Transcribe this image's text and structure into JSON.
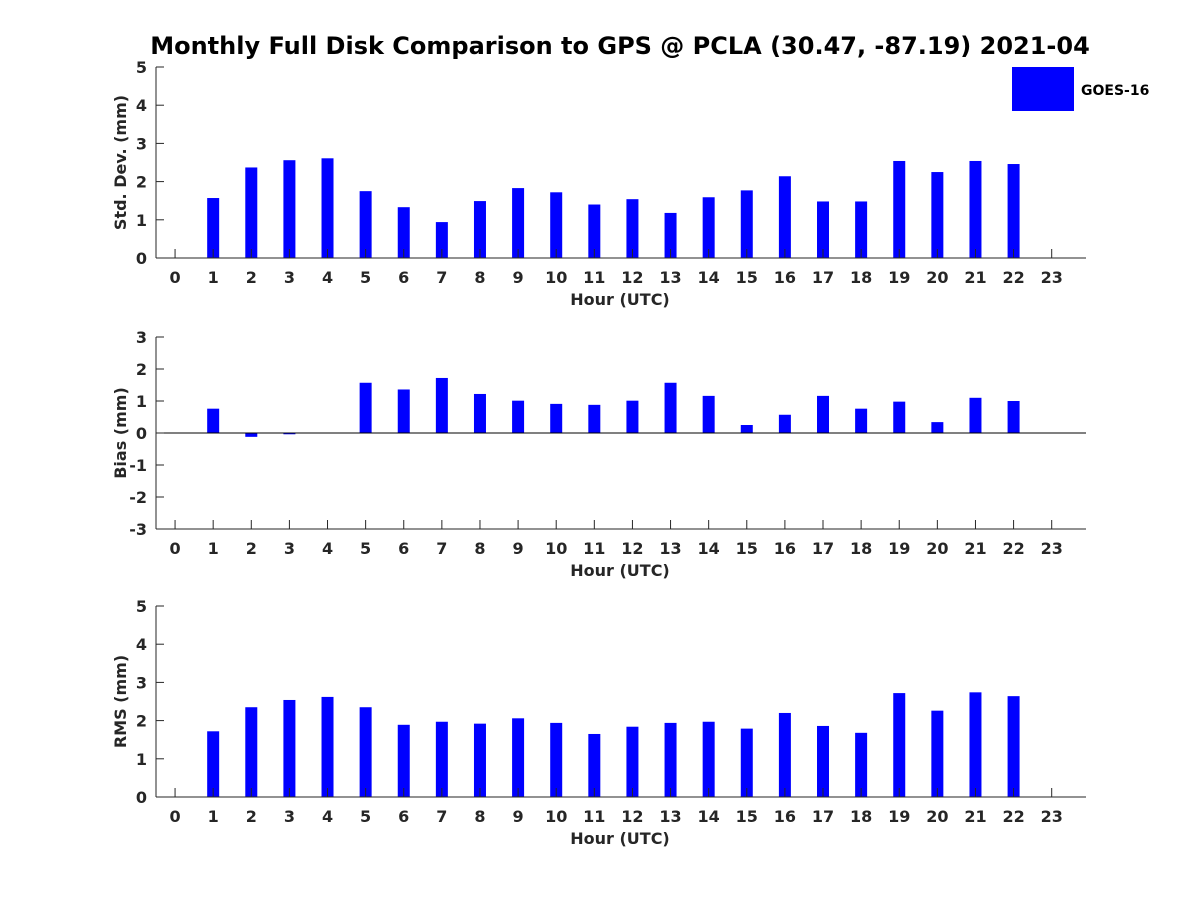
{
  "title": "Monthly Full Disk Comparison to GPS @ PCLA (30.47, -87.19) 2021-04",
  "legend": {
    "label": "GOES-16",
    "color": "#0000ff",
    "placement": "top-right"
  },
  "colors": {
    "bar": "#0000ff",
    "axis": "#262626"
  },
  "chart_data": [
    {
      "type": "bar",
      "series": [
        {
          "name": "GOES-16",
          "x": [
            1,
            2,
            3,
            4,
            5,
            6,
            7,
            8,
            9,
            10,
            11,
            12,
            13,
            14,
            15,
            16,
            17,
            18,
            19,
            20,
            21,
            22
          ],
          "values": [
            1.57,
            2.37,
            2.56,
            2.61,
            1.75,
            1.33,
            0.94,
            1.49,
            1.83,
            1.72,
            1.4,
            1.54,
            1.18,
            1.59,
            1.77,
            2.14,
            1.48,
            1.48,
            2.54,
            2.25,
            2.54,
            2.46
          ]
        }
      ],
      "xticks": [
        "0",
        "1",
        "2",
        "3",
        "4",
        "5",
        "6",
        "7",
        "8",
        "9",
        "10",
        "11",
        "12",
        "13",
        "14",
        "15",
        "16",
        "17",
        "18",
        "19",
        "20",
        "21",
        "22",
        "23"
      ],
      "yticks": [
        "0",
        "1",
        "2",
        "3",
        "4",
        "5"
      ],
      "xlabel": "Hour (UTC)",
      "ylabel": "Std. Dev. (mm)",
      "xlim": [
        -0.5,
        23.9
      ],
      "ylim": [
        0,
        5
      ],
      "grid": false
    },
    {
      "type": "bar",
      "series": [
        {
          "name": "GOES-16",
          "x": [
            1,
            2,
            3,
            4,
            5,
            6,
            7,
            8,
            9,
            10,
            11,
            12,
            13,
            14,
            15,
            16,
            17,
            18,
            19,
            20,
            21,
            22
          ],
          "values": [
            0.76,
            -0.12,
            -0.04,
            0.0,
            1.57,
            1.36,
            1.72,
            1.22,
            1.01,
            0.91,
            0.88,
            1.01,
            1.57,
            1.16,
            0.25,
            0.57,
            1.16,
            0.76,
            0.98,
            0.34,
            1.1,
            1.0
          ]
        }
      ],
      "xticks": [
        "0",
        "1",
        "2",
        "3",
        "4",
        "5",
        "6",
        "7",
        "8",
        "9",
        "10",
        "11",
        "12",
        "13",
        "14",
        "15",
        "16",
        "17",
        "18",
        "19",
        "20",
        "21",
        "22",
        "23"
      ],
      "yticks": [
        "-3",
        "-2",
        "-1",
        "0",
        "1",
        "2",
        "3"
      ],
      "xlabel": "Hour (UTC)",
      "ylabel": "Bias (mm)",
      "xlim": [
        -0.5,
        23.9
      ],
      "ylim": [
        -3,
        3
      ],
      "grid": false
    },
    {
      "type": "bar",
      "series": [
        {
          "name": "GOES-16",
          "x": [
            1,
            2,
            3,
            4,
            5,
            6,
            7,
            8,
            9,
            10,
            11,
            12,
            13,
            14,
            15,
            16,
            17,
            18,
            19,
            20,
            21,
            22
          ],
          "values": [
            1.72,
            2.35,
            2.54,
            2.62,
            2.35,
            1.89,
            1.97,
            1.92,
            2.06,
            1.94,
            1.65,
            1.84,
            1.94,
            1.97,
            1.79,
            2.2,
            1.86,
            1.68,
            2.72,
            2.26,
            2.74,
            2.64
          ]
        }
      ],
      "xticks": [
        "0",
        "1",
        "2",
        "3",
        "4",
        "5",
        "6",
        "7",
        "8",
        "9",
        "10",
        "11",
        "12",
        "13",
        "14",
        "15",
        "16",
        "17",
        "18",
        "19",
        "20",
        "21",
        "22",
        "23"
      ],
      "yticks": [
        "0",
        "1",
        "2",
        "3",
        "4",
        "5"
      ],
      "xlabel": "Hour (UTC)",
      "ylabel": "RMS (mm)",
      "xlim": [
        -0.5,
        23.9
      ],
      "ylim": [
        0,
        5
      ],
      "grid": false
    }
  ]
}
